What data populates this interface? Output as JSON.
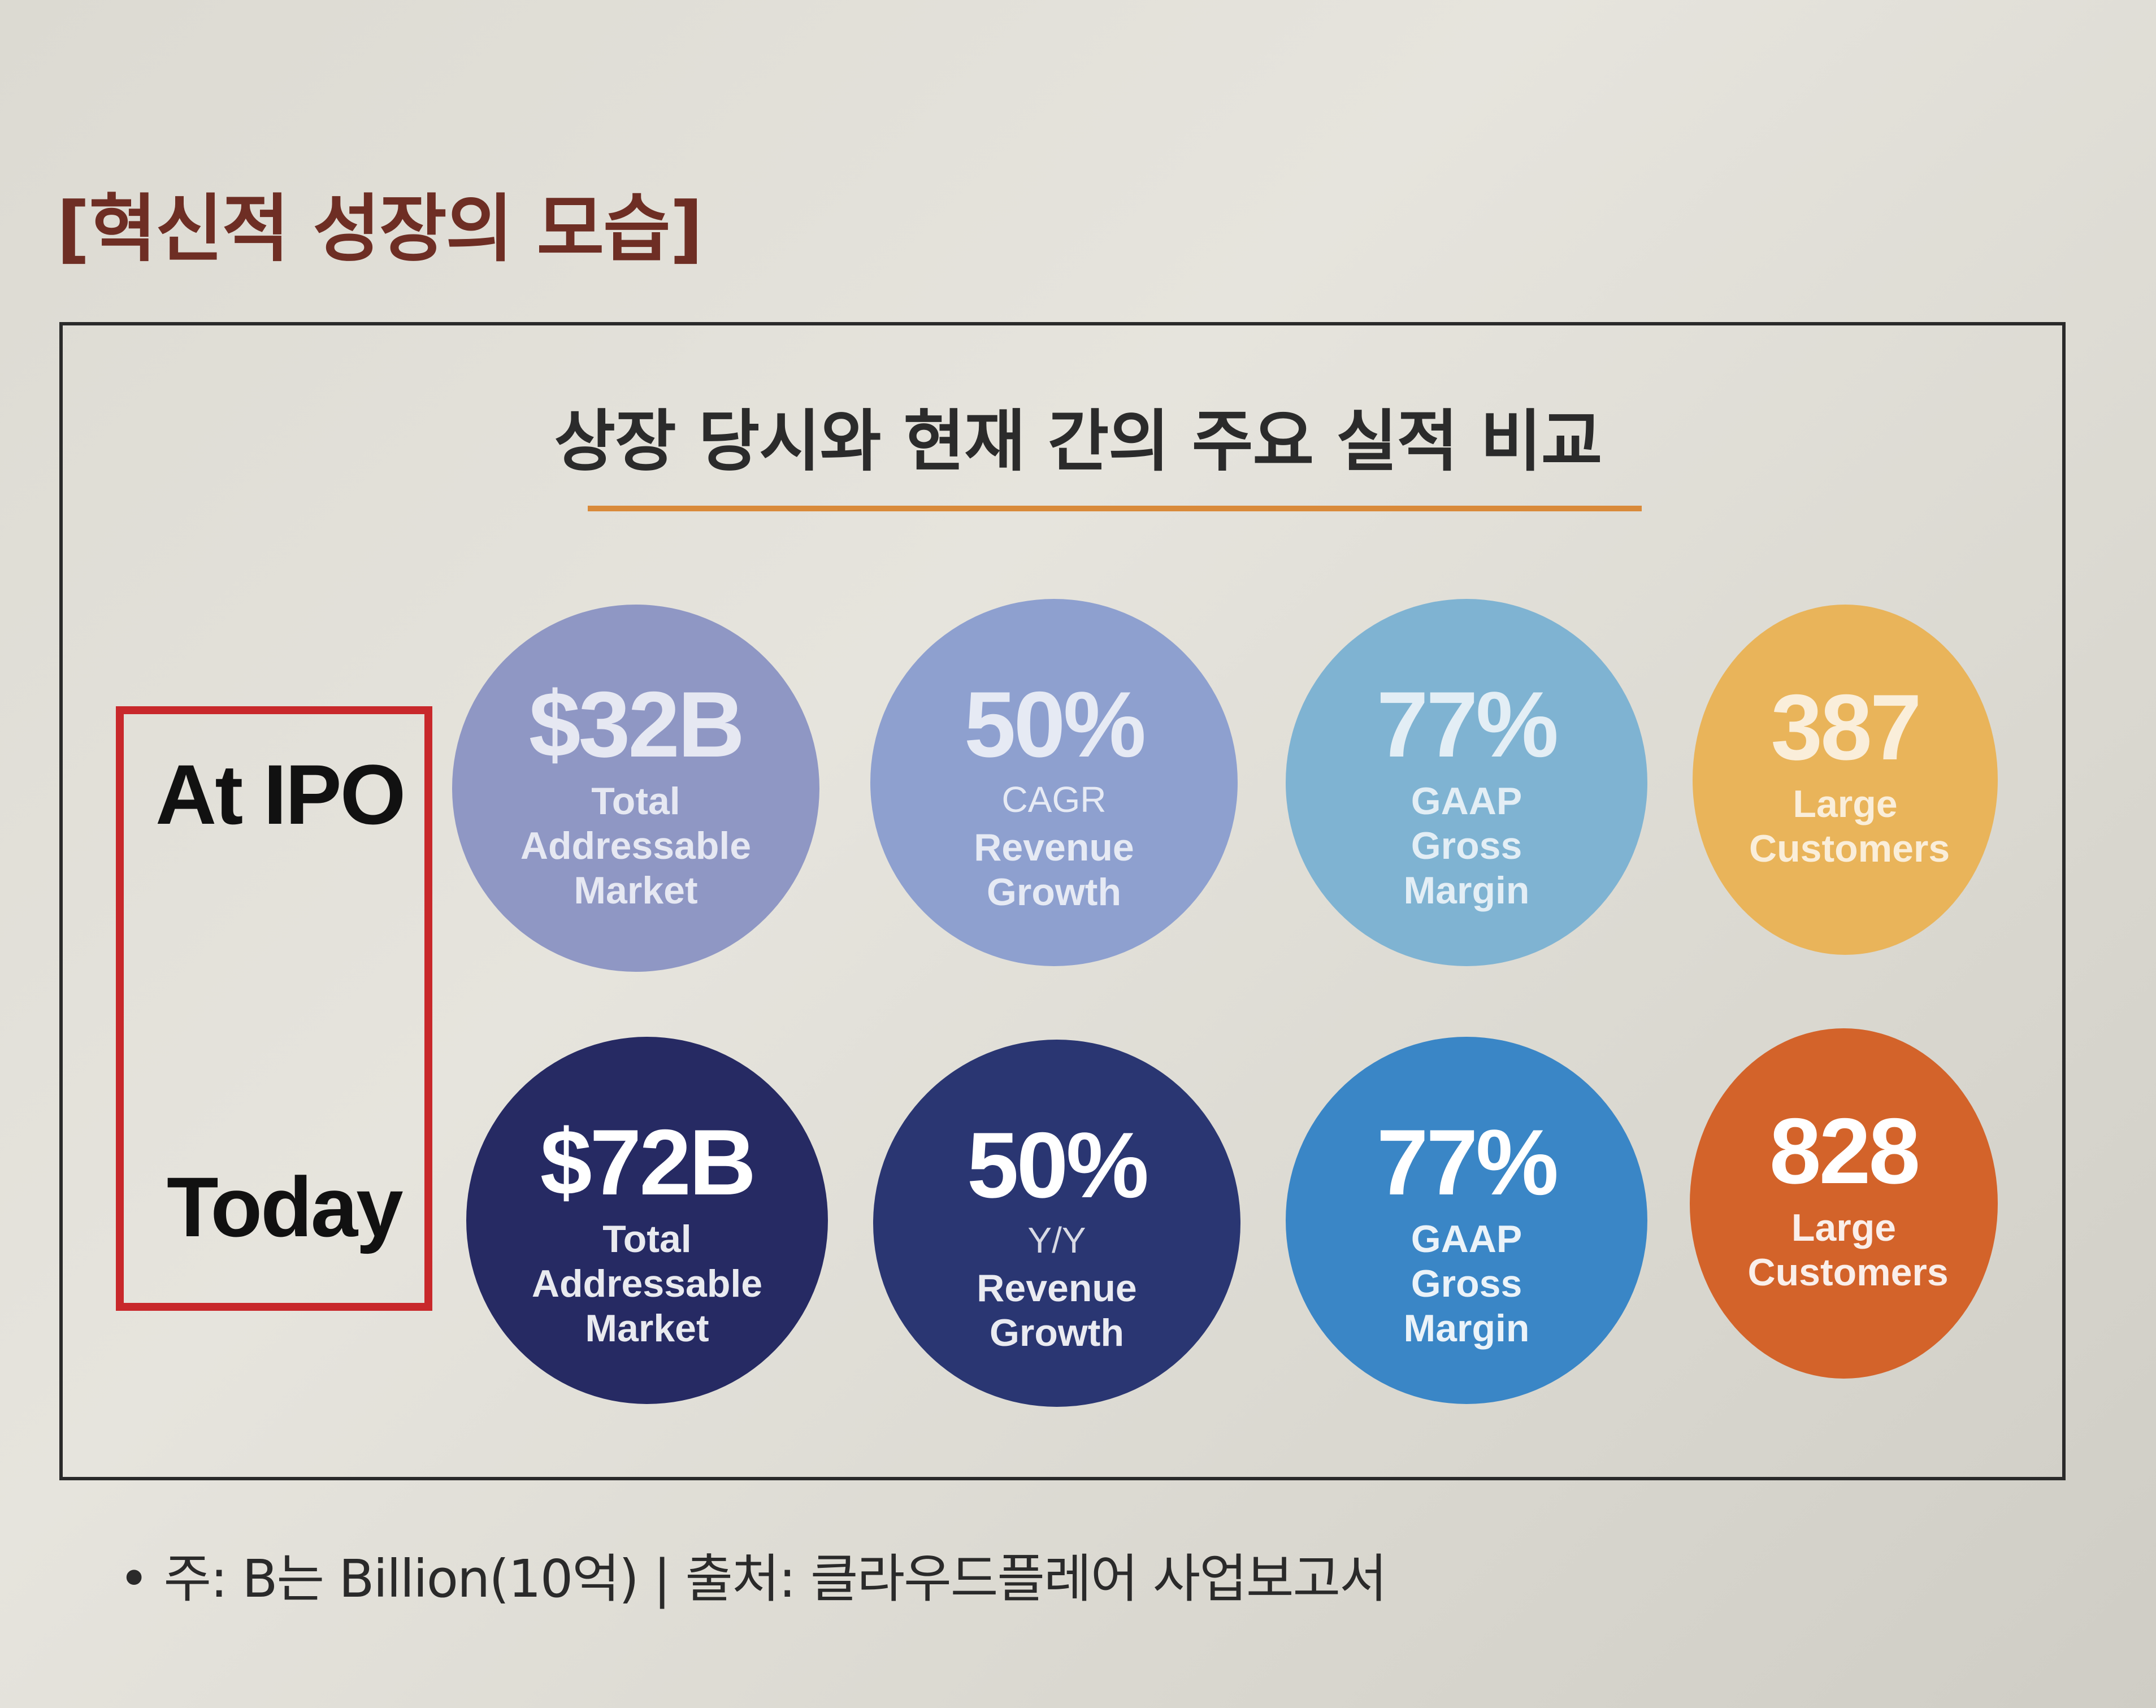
{
  "section_title": "[혁신적 성장의 모습]",
  "chart_title": "상장 당시와 현재 간의 주요 실적 비교",
  "rows": {
    "ipo": {
      "label": "At IPO",
      "metrics": [
        {
          "value": "$32B",
          "sub": "",
          "desc": "Total Addressable Market",
          "color": "#8f97c4"
        },
        {
          "value": "50%",
          "sub": "CAGR",
          "desc": "Revenue Growth",
          "color": "#8ea0cf"
        },
        {
          "value": "77%",
          "sub": "",
          "desc": "GAAP Gross Margin",
          "color": "#7fb3d2"
        },
        {
          "value": "387",
          "sub": "",
          "desc": "Large Customers",
          "color": "#e9b45a"
        }
      ]
    },
    "today": {
      "label": "Today",
      "metrics": [
        {
          "value": "$72B",
          "sub": "",
          "desc": "Total Addressable Market",
          "color": "#262a63"
        },
        {
          "value": "50%",
          "sub": "Y/Y",
          "desc": "Revenue Growth",
          "color": "#2a3672"
        },
        {
          "value": "77%",
          "sub": "",
          "desc": "GAAP Gross Margin",
          "color": "#3a86c6"
        },
        {
          "value": "828",
          "sub": "",
          "desc": "Large Customers",
          "color": "#d3632a"
        }
      ]
    }
  },
  "footnote": "• 주: B는 Billion(10억) | 출처: 클라우드플레어 사업보고서"
}
